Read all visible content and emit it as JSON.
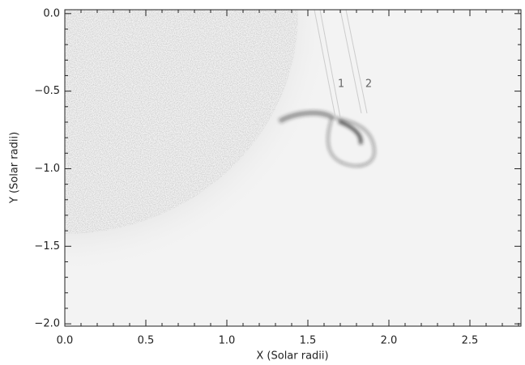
{
  "chart_data": {
    "type": "image",
    "xlabel": "X (Solar radii)",
    "ylabel": "Y (Solar radii)",
    "xlim": [
      0,
      2.815
    ],
    "ylim": [
      -2.015,
      0.025
    ],
    "xticks": [
      {
        "value": 0,
        "label": "0.0"
      },
      {
        "value": 0.5,
        "label": "0.5"
      },
      {
        "value": 1,
        "label": "1.0"
      },
      {
        "value": 1.5,
        "label": "1.5"
      },
      {
        "value": 2,
        "label": "2.0"
      },
      {
        "value": 2.5,
        "label": "2.5"
      }
    ],
    "yticks": [
      {
        "value": 0,
        "label": "0.0"
      },
      {
        "value": -0.5,
        "label": "−0.5"
      },
      {
        "value": -1,
        "label": "−1.0"
      },
      {
        "value": -1.5,
        "label": "−1.5"
      },
      {
        "value": -2,
        "label": "−2.0"
      }
    ],
    "xminorticks": [
      0.1,
      0.2,
      0.3,
      0.4,
      0.6,
      0.7,
      0.8,
      0.9,
      1.1,
      1.2,
      1.3,
      1.4,
      1.6,
      1.7,
      1.8,
      1.9,
      2.1,
      2.2,
      2.3,
      2.4,
      2.6,
      2.7,
      2.8
    ],
    "yminorticks": [
      -0.1,
      -0.2,
      -0.3,
      -0.4,
      -0.6,
      -0.7,
      -0.8,
      -0.9,
      -1.1,
      -1.2,
      -1.3,
      -1.4,
      -1.6,
      -1.7,
      -1.8,
      -1.9
    ],
    "annotations": [
      "1",
      "2"
    ]
  }
}
